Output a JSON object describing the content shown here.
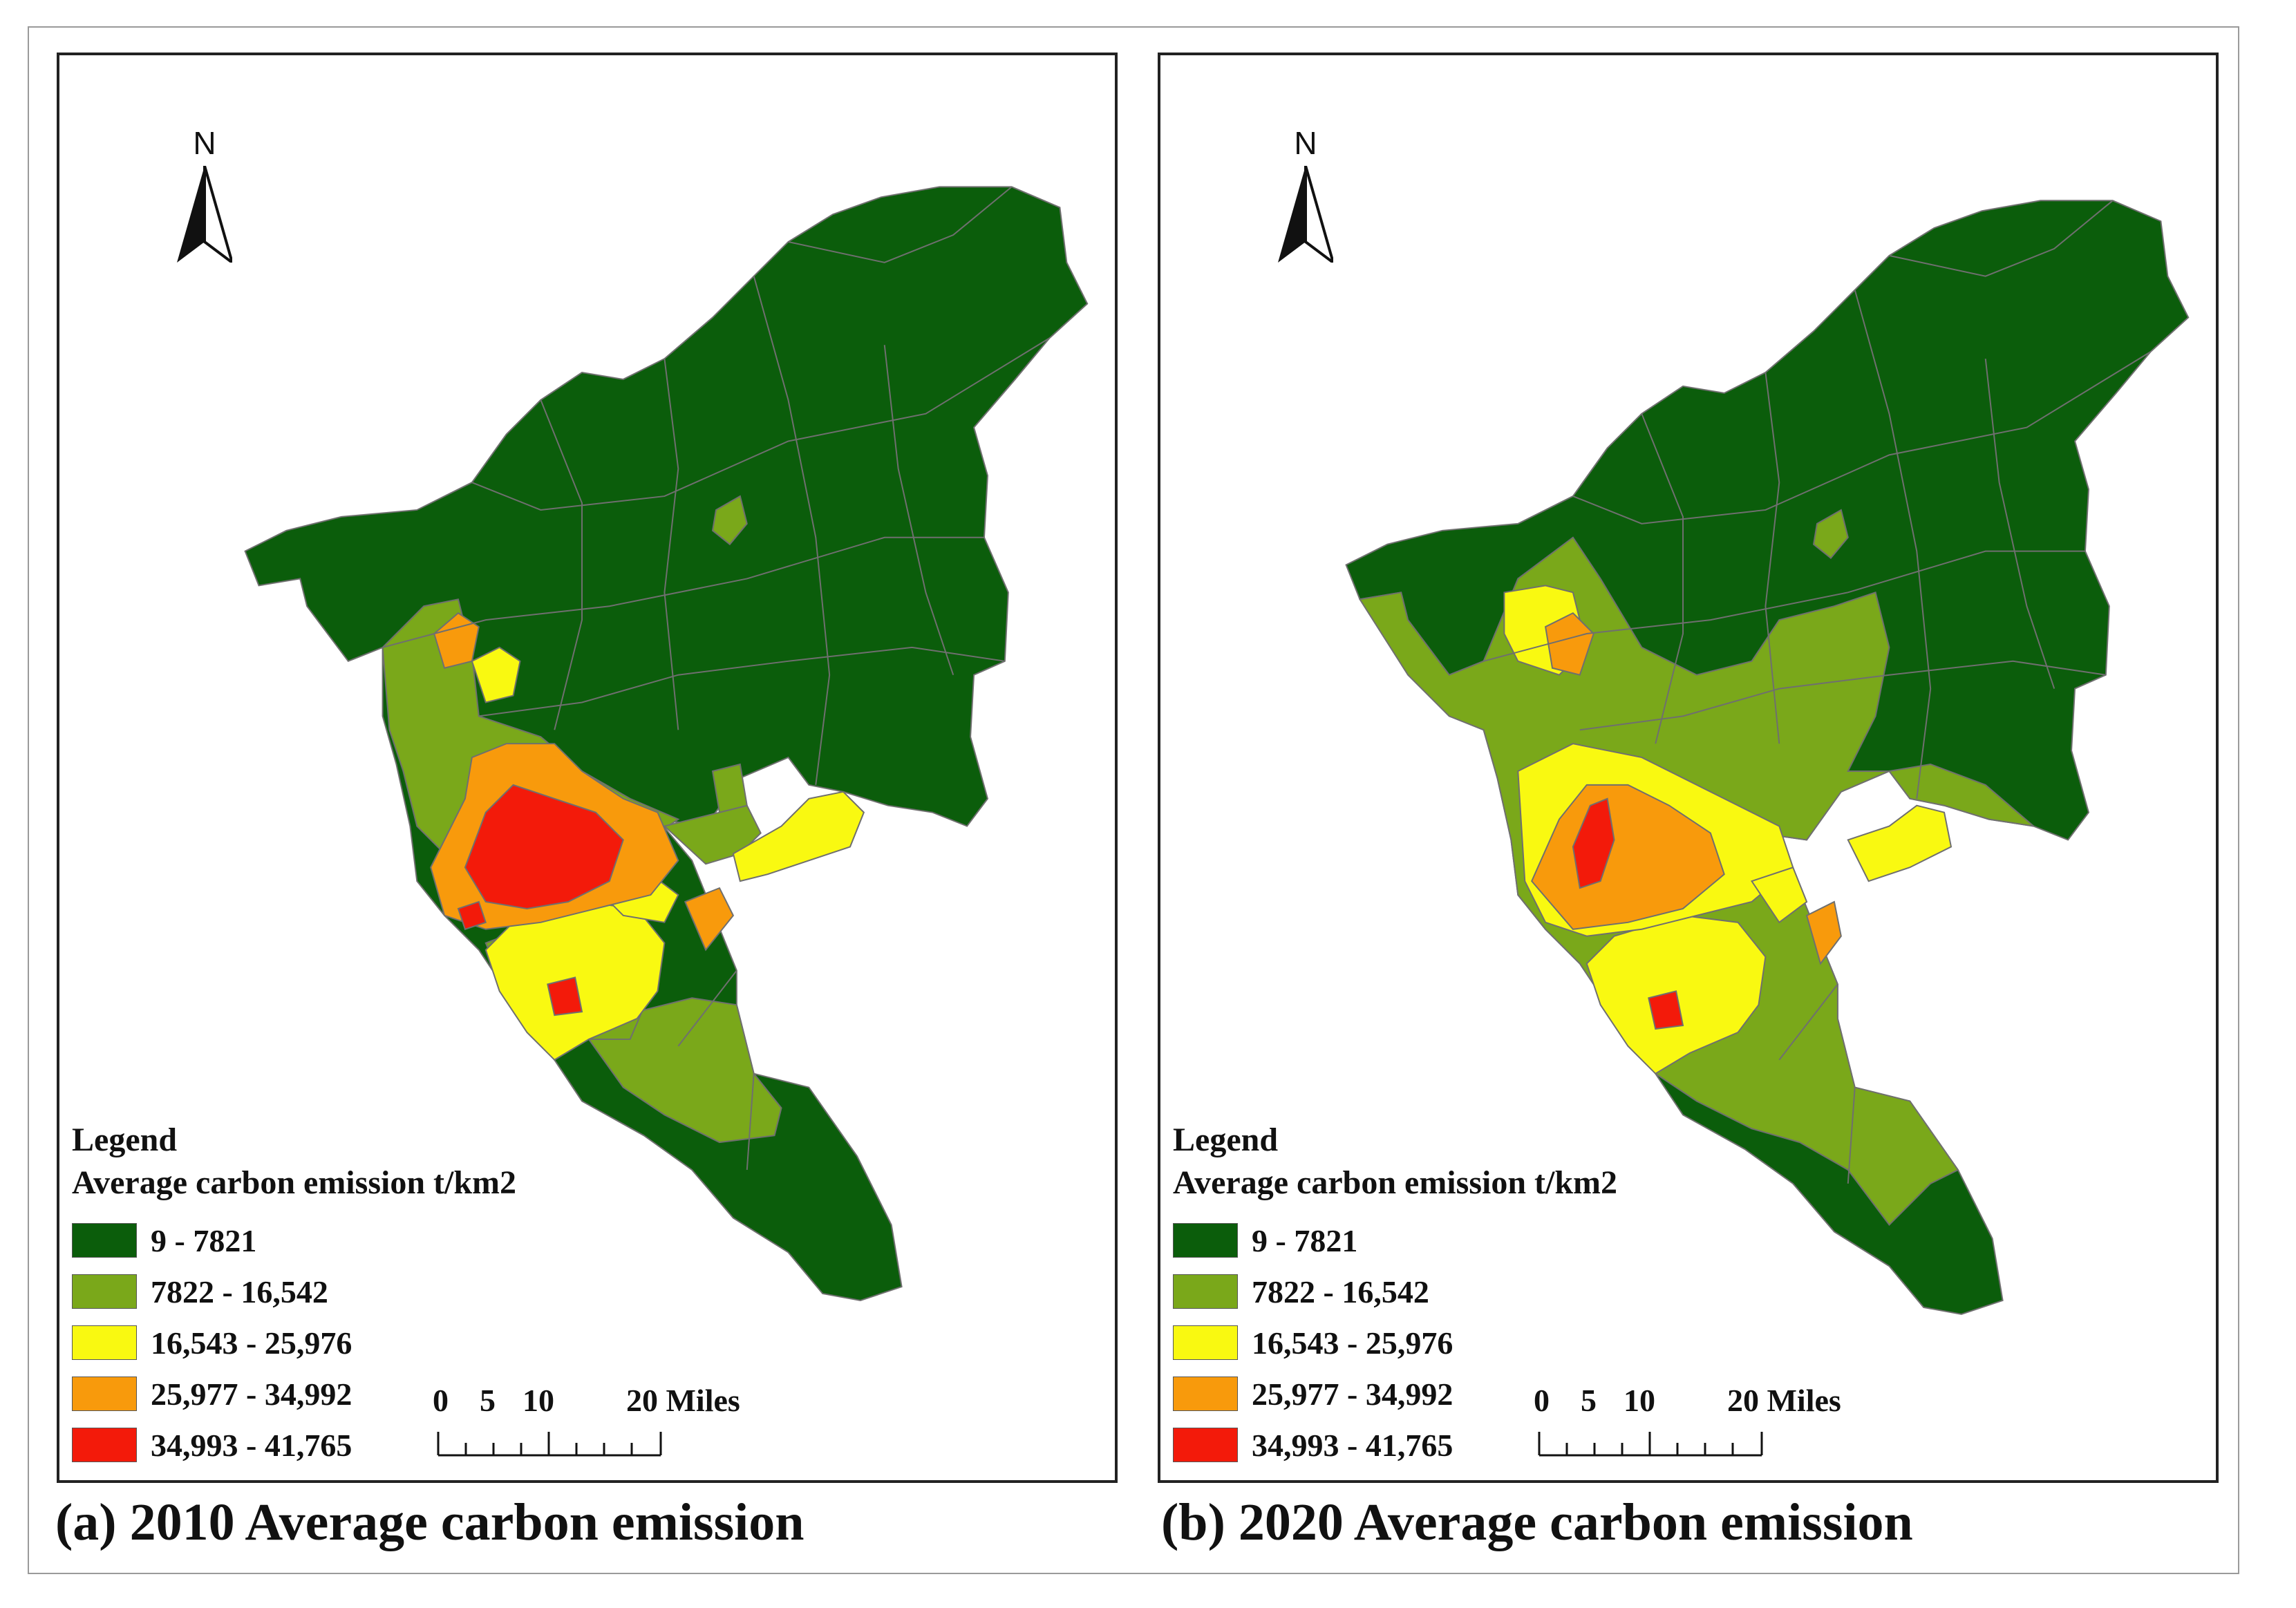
{
  "colors": {
    "class1": "#0b5d0b",
    "class2": "#7aa81a",
    "class3": "#f9f911",
    "class4": "#f89a0c",
    "class5": "#f31a0a",
    "boundary": "#6f6f6f"
  },
  "legend": {
    "title": "Legend",
    "subtitle": "Average carbon emission t/km2",
    "classes": [
      {
        "label": "9 - 7821",
        "color": "#0b5d0b"
      },
      {
        "label": "7822 - 16,542",
        "color": "#7aa81a"
      },
      {
        "label": "16,543 - 25,976",
        "color": "#f9f911"
      },
      {
        "label": "25,977 - 34,992",
        "color": "#f89a0c"
      },
      {
        "label": "34,993 - 41,765",
        "color": "#f31a0a"
      }
    ]
  },
  "north_arrow": {
    "label": "N"
  },
  "scale_bar": {
    "ticks": [
      "0",
      "5",
      "10",
      "20 Miles"
    ],
    "unit": "Miles"
  },
  "panels": [
    {
      "id": "a",
      "caption": "(a) 2010 Average carbon emission",
      "year": "2010"
    },
    {
      "id": "b",
      "caption": "(b) 2020 Average carbon emission",
      "year": "2020"
    }
  ]
}
